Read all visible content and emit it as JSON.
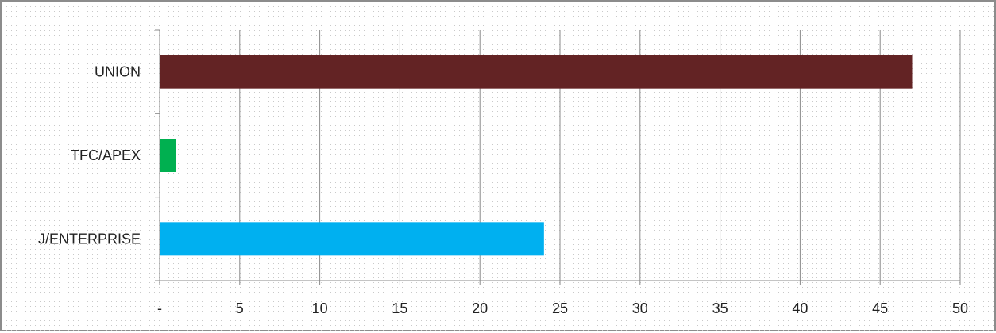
{
  "chart_data": {
    "type": "bar",
    "orientation": "horizontal",
    "categories": [
      "UNION",
      "TFC/APEX",
      "J/ENTERPRISE"
    ],
    "values": [
      47,
      1,
      24
    ],
    "colors": [
      "#632324",
      "#00b050",
      "#00b0f0"
    ],
    "xlim": [
      0,
      50
    ],
    "xticks": [
      0,
      5,
      10,
      15,
      20,
      25,
      30,
      35,
      40,
      45,
      50
    ],
    "xtick_labels": [
      "-",
      "5",
      "10",
      "15",
      "20",
      "25",
      "30",
      "35",
      "40",
      "45",
      "50"
    ],
    "grid": "vertical",
    "background": "dotted",
    "title": "",
    "xlabel": "",
    "ylabel": ""
  }
}
